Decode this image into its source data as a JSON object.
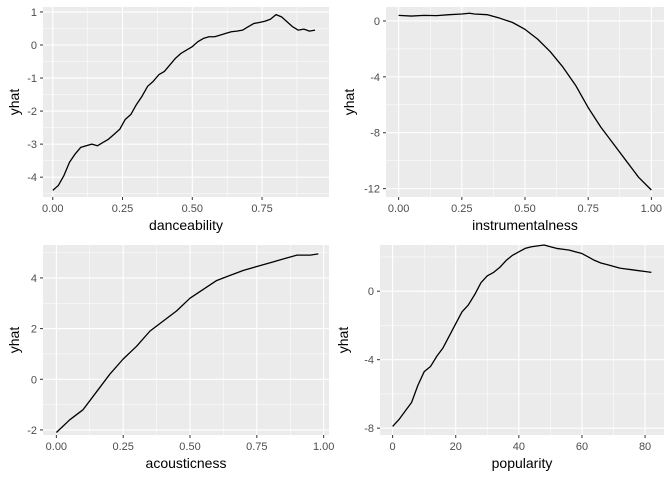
{
  "chart_data": [
    {
      "type": "line",
      "xlabel": "danceability",
      "ylabel": "yhat",
      "xlim": [
        -0.035,
        0.99
      ],
      "ylim": [
        -4.6,
        1.15
      ],
      "x_ticks": [
        0,
        0.25,
        0.5,
        0.75
      ],
      "x_tick_labels": [
        "0.00",
        "0.25",
        "0.50",
        "0.75"
      ],
      "y_ticks": [
        -4,
        -3,
        -2,
        -1,
        0,
        1
      ],
      "y_tick_labels": [
        "-4",
        "-3",
        "-2",
        "-1",
        "0",
        "1"
      ],
      "grid": true,
      "series": [
        {
          "x": [
            0.0,
            0.02,
            0.04,
            0.06,
            0.08,
            0.1,
            0.12,
            0.14,
            0.16,
            0.18,
            0.2,
            0.22,
            0.24,
            0.26,
            0.28,
            0.3,
            0.32,
            0.34,
            0.36,
            0.38,
            0.4,
            0.42,
            0.44,
            0.46,
            0.48,
            0.5,
            0.52,
            0.54,
            0.56,
            0.58,
            0.6,
            0.62,
            0.64,
            0.66,
            0.68,
            0.7,
            0.72,
            0.74,
            0.76,
            0.78,
            0.8,
            0.82,
            0.84,
            0.86,
            0.88,
            0.9,
            0.92,
            0.94
          ],
          "y": [
            -4.4,
            -4.25,
            -3.95,
            -3.55,
            -3.3,
            -3.1,
            -3.05,
            -3.0,
            -3.05,
            -2.95,
            -2.85,
            -2.7,
            -2.55,
            -2.25,
            -2.1,
            -1.8,
            -1.55,
            -1.25,
            -1.1,
            -0.9,
            -0.8,
            -0.6,
            -0.4,
            -0.25,
            -0.15,
            -0.05,
            0.1,
            0.2,
            0.25,
            0.25,
            0.3,
            0.35,
            0.4,
            0.42,
            0.45,
            0.55,
            0.65,
            0.68,
            0.72,
            0.78,
            0.92,
            0.85,
            0.7,
            0.55,
            0.45,
            0.48,
            0.42,
            0.45
          ]
        }
      ]
    },
    {
      "type": "line",
      "xlabel": "instrumentalness",
      "ylabel": "yhat",
      "xlim": [
        -0.05,
        1.05
      ],
      "ylim": [
        -12.6,
        1.0
      ],
      "x_ticks": [
        0,
        0.25,
        0.5,
        0.75,
        1.0
      ],
      "x_tick_labels": [
        "0.00",
        "0.25",
        "0.50",
        "0.75",
        "1.00"
      ],
      "y_ticks": [
        -12,
        -8,
        -4,
        0
      ],
      "y_tick_labels": [
        "-12",
        "-8",
        "-4",
        "0"
      ],
      "grid": true,
      "series": [
        {
          "x": [
            0.0,
            0.05,
            0.1,
            0.15,
            0.2,
            0.25,
            0.28,
            0.3,
            0.35,
            0.4,
            0.45,
            0.5,
            0.55,
            0.6,
            0.65,
            0.7,
            0.75,
            0.8,
            0.85,
            0.9,
            0.95,
            1.0
          ],
          "y": [
            0.4,
            0.35,
            0.4,
            0.38,
            0.45,
            0.5,
            0.55,
            0.5,
            0.45,
            0.2,
            -0.1,
            -0.6,
            -1.3,
            -2.2,
            -3.3,
            -4.6,
            -6.2,
            -7.6,
            -8.8,
            -10.0,
            -11.2,
            -12.1
          ]
        }
      ]
    },
    {
      "type": "line",
      "xlabel": "acousticness",
      "ylabel": "yhat",
      "xlim": [
        -0.05,
        1.02
      ],
      "ylim": [
        -2.2,
        5.3
      ],
      "x_ticks": [
        0,
        0.25,
        0.5,
        0.75,
        1.0
      ],
      "x_tick_labels": [
        "0.00",
        "0.25",
        "0.50",
        "0.75",
        "1.00"
      ],
      "y_ticks": [
        -2,
        0,
        2,
        4
      ],
      "y_tick_labels": [
        "-2",
        "0",
        "2",
        "4"
      ],
      "grid": true,
      "series": [
        {
          "x": [
            0.0,
            0.05,
            0.1,
            0.15,
            0.2,
            0.25,
            0.3,
            0.35,
            0.4,
            0.45,
            0.5,
            0.55,
            0.6,
            0.65,
            0.7,
            0.75,
            0.8,
            0.85,
            0.9,
            0.95,
            0.98
          ],
          "y": [
            -2.1,
            -1.6,
            -1.2,
            -0.5,
            0.2,
            0.8,
            1.3,
            1.9,
            2.3,
            2.7,
            3.2,
            3.55,
            3.9,
            4.1,
            4.3,
            4.45,
            4.6,
            4.75,
            4.9,
            4.9,
            4.95
          ]
        }
      ]
    },
    {
      "type": "line",
      "xlabel": "popularity",
      "ylabel": "yhat",
      "xlim": [
        -4,
        86
      ],
      "ylim": [
        -8.4,
        2.7
      ],
      "x_ticks": [
        0,
        20,
        40,
        60,
        80
      ],
      "x_tick_labels": [
        "0",
        "20",
        "40",
        "60",
        "80"
      ],
      "y_ticks": [
        -8,
        -4,
        0
      ],
      "y_tick_labels": [
        "-8",
        "-4",
        "0"
      ],
      "grid": true,
      "series": [
        {
          "x": [
            0,
            2,
            4,
            6,
            8,
            10,
            12,
            14,
            16,
            18,
            20,
            22,
            24,
            26,
            28,
            30,
            32,
            34,
            36,
            38,
            40,
            42,
            44,
            46,
            48,
            50,
            52,
            54,
            56,
            58,
            60,
            62,
            64,
            66,
            68,
            70,
            72,
            74,
            76,
            78,
            80,
            82
          ],
          "y": [
            -7.9,
            -7.5,
            -7.0,
            -6.5,
            -5.5,
            -4.7,
            -4.4,
            -3.8,
            -3.3,
            -2.6,
            -1.9,
            -1.2,
            -0.8,
            -0.2,
            0.5,
            0.9,
            1.1,
            1.4,
            1.8,
            2.1,
            2.3,
            2.5,
            2.6,
            2.65,
            2.7,
            2.6,
            2.5,
            2.45,
            2.4,
            2.3,
            2.2,
            2.0,
            1.8,
            1.65,
            1.55,
            1.45,
            1.35,
            1.3,
            1.25,
            1.2,
            1.15,
            1.1
          ]
        }
      ]
    }
  ]
}
